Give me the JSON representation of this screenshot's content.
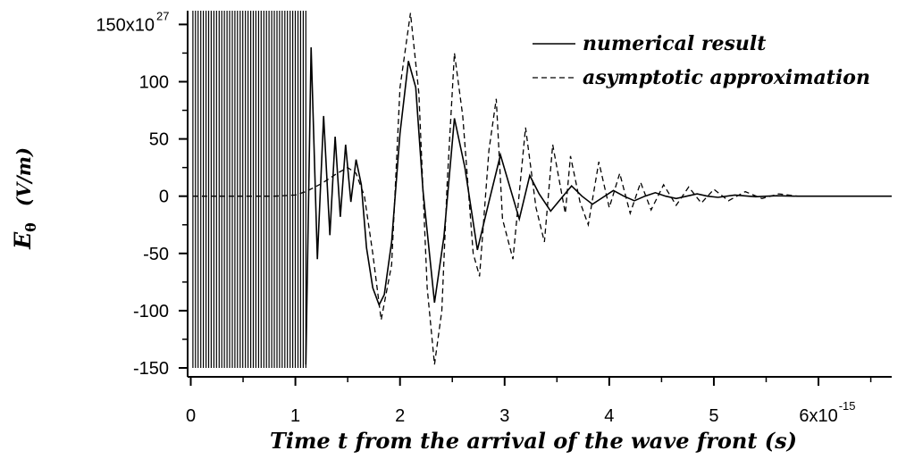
{
  "chart_data": {
    "type": "line",
    "xlabel": "Time t from the arrival of the wave front (s)",
    "ylabel": {
      "symbol": "E",
      "subscript": "θ",
      "unit": "(V/m)"
    },
    "x_scale": "×10^-15 s",
    "y_scale": "×10^27 V/m",
    "xlim": [
      -0.03,
      6.7
    ],
    "ylim": [
      -150,
      162
    ],
    "x_ticks": [
      0,
      1,
      2,
      3,
      4,
      5,
      6
    ],
    "y_ticks": [
      -150,
      -100,
      -50,
      0,
      50,
      100,
      150
    ],
    "x_tick_labels": [
      "0",
      "1",
      "2",
      "3",
      "4",
      "5",
      "6x10"
    ],
    "x_tick_exponent": "-15",
    "y_tick_labels": [
      "-150",
      "-100",
      "-50",
      "0",
      "50",
      "100",
      "150x10"
    ],
    "y_tick_exponent": "27",
    "grid": false,
    "legend_position": "top-right",
    "series": [
      {
        "name": "numerical result",
        "line_style": "solid",
        "points": [
          [
            1.1,
            -147
          ],
          [
            1.15,
            130
          ],
          [
            1.21,
            -55
          ],
          [
            1.27,
            70
          ],
          [
            1.33,
            -34
          ],
          [
            1.38,
            52
          ],
          [
            1.43,
            -18
          ],
          [
            1.48,
            45
          ],
          [
            1.53,
            -5
          ],
          [
            1.58,
            32
          ],
          [
            1.63,
            10
          ],
          [
            1.68,
            -45
          ],
          [
            1.74,
            -80
          ],
          [
            1.8,
            -95
          ],
          [
            1.85,
            -86
          ],
          [
            1.92,
            -40
          ],
          [
            2.0,
            55
          ],
          [
            2.08,
            118
          ],
          [
            2.15,
            95
          ],
          [
            2.22,
            5
          ],
          [
            2.33,
            -93
          ],
          [
            2.42,
            -35
          ],
          [
            2.52,
            68
          ],
          [
            2.62,
            25
          ],
          [
            2.74,
            -47
          ],
          [
            2.85,
            -5
          ],
          [
            2.96,
            36
          ],
          [
            3.06,
            5
          ],
          [
            3.14,
            -20
          ],
          [
            3.24,
            18
          ],
          [
            3.33,
            2
          ],
          [
            3.44,
            -13
          ],
          [
            3.54,
            -2
          ],
          [
            3.64,
            9
          ],
          [
            3.74,
            0
          ],
          [
            3.84,
            -7
          ],
          [
            3.94,
            -1
          ],
          [
            4.04,
            5
          ],
          [
            4.14,
            0
          ],
          [
            4.24,
            -4
          ],
          [
            4.34,
            0
          ],
          [
            4.44,
            3
          ],
          [
            4.54,
            0
          ],
          [
            4.64,
            -2
          ],
          [
            4.74,
            0
          ],
          [
            4.84,
            2
          ],
          [
            4.94,
            0
          ],
          [
            5.04,
            -1
          ],
          [
            5.2,
            1
          ],
          [
            5.4,
            -0.5
          ],
          [
            5.6,
            0.4
          ],
          [
            5.8,
            0
          ],
          [
            6.2,
            0
          ],
          [
            6.7,
            0
          ]
        ]
      },
      {
        "name": "asymptotic approximation",
        "line_style": "dashed",
        "points": [
          [
            0.02,
            0
          ],
          [
            0.5,
            0
          ],
          [
            0.8,
            0
          ],
          [
            1.0,
            1
          ],
          [
            1.1,
            4
          ],
          [
            1.25,
            11
          ],
          [
            1.4,
            20
          ],
          [
            1.5,
            25
          ],
          [
            1.58,
            20
          ],
          [
            1.66,
            0
          ],
          [
            1.74,
            -50
          ],
          [
            1.82,
            -108
          ],
          [
            1.92,
            -60
          ],
          [
            2.0,
            95
          ],
          [
            2.1,
            160
          ],
          [
            2.18,
            90
          ],
          [
            2.26,
            -80
          ],
          [
            2.33,
            -147
          ],
          [
            2.4,
            -100
          ],
          [
            2.45,
            10
          ],
          [
            2.52,
            125
          ],
          [
            2.6,
            70
          ],
          [
            2.7,
            -50
          ],
          [
            2.76,
            -70
          ],
          [
            2.85,
            40
          ],
          [
            2.92,
            85
          ],
          [
            2.98,
            -20
          ],
          [
            3.08,
            -55
          ],
          [
            3.2,
            60
          ],
          [
            3.3,
            -10
          ],
          [
            3.38,
            -40
          ],
          [
            3.46,
            45
          ],
          [
            3.58,
            -15
          ],
          [
            3.63,
            35
          ],
          [
            3.72,
            -5
          ],
          [
            3.8,
            -25
          ],
          [
            3.9,
            30
          ],
          [
            4.0,
            -10
          ],
          [
            4.1,
            20
          ],
          [
            4.2,
            -15
          ],
          [
            4.3,
            12
          ],
          [
            4.4,
            -12
          ],
          [
            4.52,
            10
          ],
          [
            4.64,
            -8
          ],
          [
            4.76,
            8
          ],
          [
            4.88,
            -6
          ],
          [
            5.0,
            6
          ],
          [
            5.14,
            -4
          ],
          [
            5.3,
            4
          ],
          [
            5.46,
            -2
          ],
          [
            5.62,
            2
          ],
          [
            5.8,
            0
          ],
          [
            6.2,
            0
          ],
          [
            6.7,
            0
          ]
        ]
      }
    ],
    "dense_region": {
      "description_series": "numerical result",
      "x_range": [
        0.02,
        1.1
      ],
      "y_range": [
        -150,
        162
      ]
    }
  }
}
